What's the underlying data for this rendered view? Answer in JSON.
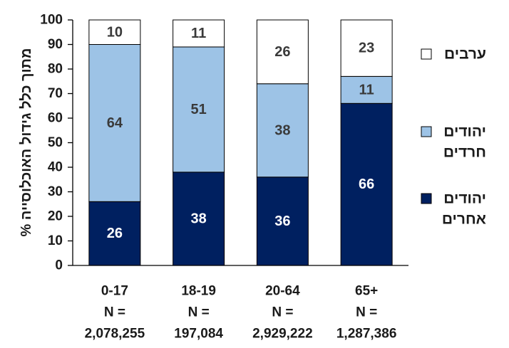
{
  "chart_data": {
    "type": "bar",
    "stacked": true,
    "ylabel": "% מתוך כלל גידול האוכלוסייה",
    "ylim": [
      0,
      100
    ],
    "yticks": [
      0,
      10,
      20,
      30,
      40,
      50,
      60,
      70,
      80,
      90,
      100
    ],
    "categories": [
      "0-17",
      "18-19",
      "20-64",
      "65+"
    ],
    "n_line": [
      "N =",
      "N =",
      "N =",
      "N ="
    ],
    "n_values": [
      "2,078,255",
      "197,084",
      "2,929,222",
      "1,287,386"
    ],
    "series": [
      {
        "name": "יהודים אחרים",
        "legend_lines": [
          "יהודים",
          "אחרים"
        ],
        "values": [
          26,
          38,
          36,
          66
        ],
        "color": "#002060",
        "label_color": "#ffffff"
      },
      {
        "name": "יהודים חרדים",
        "legend_lines": [
          "יהודים",
          "חרדים"
        ],
        "values": [
          64,
          51,
          38,
          11
        ],
        "color": "#9dc3e6",
        "label_color": "#3a3a3a"
      },
      {
        "name": "ערבים",
        "legend_lines": [
          "ערבים"
        ],
        "values": [
          10,
          11,
          26,
          23
        ],
        "color": "#ffffff",
        "label_color": "#3a3a3a"
      }
    ],
    "legend_position": "right",
    "grid": false
  }
}
